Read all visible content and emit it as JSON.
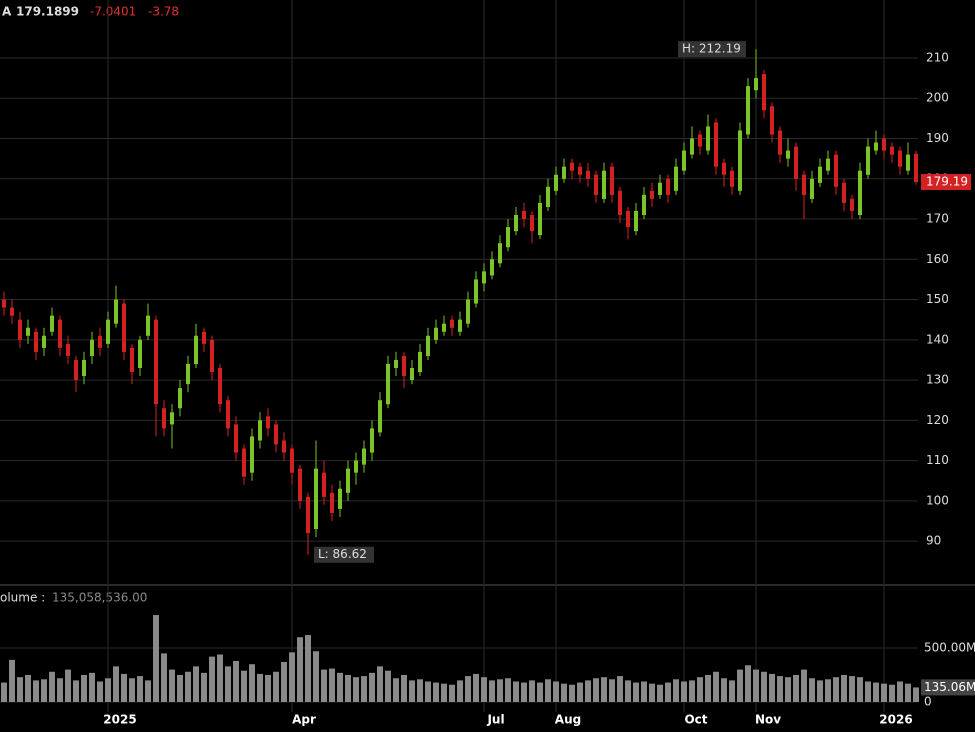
{
  "chart_data": {
    "type": "candlestick",
    "header": {
      "symbol": "A",
      "last": "179.1899",
      "change": "-7.0401",
      "change_pct": "-3.78"
    },
    "volume_title": "olume :",
    "volume_header_value": "135,058,536.00",
    "high_marker": "H: 212.19",
    "low_marker": "L: 86.62",
    "last_price_label": "179.19",
    "last_volume_label": "135.06M",
    "up_color": "#7cc528",
    "down_color": "#d42222",
    "volume_color": "#8a8a8a",
    "ylim": [
      79.6,
      224.4
    ],
    "yticks": [
      90,
      100,
      110,
      120,
      130,
      140,
      150,
      160,
      170,
      180,
      190,
      200,
      210
    ],
    "volume_ylim": [
      0,
      1037000000
    ],
    "volume_yticks": [
      0,
      {
        "value": 500000000,
        "label": "500.00M"
      }
    ],
    "categories": [
      null,
      null,
      null,
      null,
      null,
      null,
      null,
      null,
      null,
      null,
      null,
      null,
      null,
      "2025",
      null,
      null,
      null,
      null,
      null,
      null,
      null,
      null,
      null,
      null,
      null,
      null,
      null,
      null,
      null,
      null,
      null,
      null,
      null,
      null,
      null,
      null,
      "Apr",
      null,
      null,
      null,
      null,
      null,
      null,
      null,
      null,
      null,
      null,
      null,
      null,
      null,
      null,
      null,
      null,
      null,
      null,
      null,
      null,
      null,
      null,
      null,
      "Jul",
      null,
      null,
      null,
      null,
      null,
      null,
      null,
      null,
      "Aug",
      null,
      null,
      null,
      null,
      null,
      null,
      null,
      null,
      null,
      null,
      null,
      null,
      null,
      null,
      null,
      "Oct",
      null,
      null,
      null,
      null,
      null,
      null,
      null,
      null,
      "Nov",
      null,
      null,
      null,
      null,
      null,
      null,
      null,
      null,
      null,
      null,
      null,
      null,
      null,
      null,
      null,
      "2026",
      null,
      null,
      null,
      null
    ],
    "open": [
      150,
      148,
      145,
      141,
      142,
      138,
      142,
      145,
      139,
      135,
      131,
      136,
      141,
      139,
      144,
      149,
      138,
      133,
      141,
      145,
      123,
      119,
      123,
      129,
      134,
      142,
      140,
      133,
      125,
      119,
      113,
      107,
      115,
      121,
      119,
      115,
      113,
      108,
      101,
      93,
      107,
      102,
      98,
      102,
      107,
      109,
      112,
      117,
      124,
      133,
      136,
      130,
      132,
      136,
      140,
      142,
      145,
      142,
      144,
      149,
      154,
      156,
      159,
      163,
      167,
      172,
      171,
      166,
      173,
      177,
      180,
      184,
      183,
      182,
      181,
      175,
      183,
      177,
      172,
      167,
      171,
      177,
      176,
      180,
      177,
      182,
      186,
      191,
      187,
      194,
      184,
      182,
      177,
      191,
      202,
      206,
      198,
      192,
      185,
      188,
      181,
      175,
      179,
      182,
      186,
      179,
      175,
      171,
      181,
      187,
      190,
      188,
      187,
      182,
      186.2
    ],
    "high": [
      152,
      150,
      147,
      145,
      143,
      143,
      148,
      146,
      141,
      136,
      137,
      142,
      143,
      147,
      153.5,
      150,
      139,
      141,
      149,
      146,
      125,
      124,
      130,
      136,
      144,
      143,
      141,
      134,
      126,
      121,
      114,
      118,
      122,
      123,
      120,
      117,
      114,
      109,
      102,
      115,
      110,
      104,
      105,
      110,
      112,
      115,
      120,
      127,
      136,
      137,
      137,
      135,
      139,
      143,
      145,
      146,
      146,
      147,
      152,
      157,
      159,
      162,
      166,
      170,
      173,
      174,
      172,
      176,
      180,
      183,
      185,
      185,
      184,
      184,
      182,
      184,
      184,
      178,
      173,
      174,
      178,
      179,
      181,
      181,
      185,
      189,
      193,
      192,
      196,
      195,
      185,
      183,
      194,
      205,
      212.19,
      207,
      199,
      193,
      190,
      189,
      182,
      182,
      185,
      187,
      187,
      180,
      176,
      184,
      190,
      192,
      191,
      189,
      188,
      189,
      187
    ],
    "low": [
      146,
      144,
      138,
      139,
      135,
      136,
      141,
      136,
      134,
      127,
      129,
      134,
      136,
      138,
      143,
      135,
      129,
      131,
      140,
      116,
      116,
      113,
      121,
      127,
      133,
      137,
      130,
      122,
      116,
      110,
      104,
      105,
      113,
      116,
      112,
      110,
      104,
      98,
      86.62,
      91,
      99,
      95,
      96,
      100,
      104,
      107,
      110,
      116,
      123,
      131,
      128,
      129,
      131,
      135,
      139,
      141,
      141,
      141,
      143,
      148,
      152,
      155,
      158,
      162,
      166,
      168,
      164,
      165,
      172,
      176,
      179,
      180,
      179,
      178,
      174,
      174,
      174,
      169,
      165,
      166,
      170,
      173,
      175,
      174,
      176,
      181,
      185,
      186,
      186,
      181,
      178,
      176,
      176,
      190,
      200,
      195,
      189,
      184,
      183,
      177,
      170,
      174,
      178,
      181,
      176,
      172,
      170,
      170,
      180,
      186,
      185,
      184,
      181,
      181,
      178.5
    ],
    "close": [
      148,
      146,
      140,
      143,
      137,
      141,
      146,
      138,
      136,
      130,
      135,
      140,
      138,
      145,
      150,
      137,
      132,
      140,
      146,
      124,
      118,
      122,
      128,
      134,
      141,
      139,
      132,
      124,
      118,
      112,
      106,
      116,
      120,
      118,
      114,
      112,
      107,
      100,
      92,
      108,
      101,
      97,
      103,
      108,
      110,
      113,
      118,
      125,
      134,
      135,
      131,
      133,
      137,
      141,
      143,
      144,
      143,
      145,
      150,
      155,
      157,
      160,
      164,
      168,
      171,
      170,
      167,
      174,
      178,
      181,
      183,
      182,
      181,
      180,
      176,
      182,
      176,
      171,
      168,
      172,
      176,
      175,
      179,
      176,
      183,
      187,
      190,
      188,
      193,
      183,
      181,
      178,
      192,
      203,
      205,
      197,
      191,
      186,
      187,
      180,
      176,
      180,
      183,
      185,
      178,
      174,
      172,
      182,
      188,
      189,
      187,
      186,
      183,
      186,
      179.1899
    ],
    "volume": [
      180000000,
      390000000,
      230000000,
      250000000,
      200000000,
      210000000,
      280000000,
      220000000,
      300000000,
      200000000,
      250000000,
      270000000,
      190000000,
      220000000,
      330000000,
      260000000,
      220000000,
      240000000,
      200000000,
      805000000,
      450000000,
      300000000,
      250000000,
      280000000,
      330000000,
      270000000,
      420000000,
      440000000,
      330000000,
      380000000,
      290000000,
      350000000,
      260000000,
      250000000,
      280000000,
      370000000,
      460000000,
      600000000,
      620000000,
      470000000,
      300000000,
      310000000,
      270000000,
      250000000,
      230000000,
      240000000,
      270000000,
      330000000,
      290000000,
      220000000,
      250000000,
      200000000,
      210000000,
      190000000,
      180000000,
      170000000,
      160000000,
      200000000,
      240000000,
      260000000,
      230000000,
      200000000,
      210000000,
      220000000,
      190000000,
      180000000,
      200000000,
      180000000,
      210000000,
      190000000,
      170000000,
      160000000,
      180000000,
      200000000,
      220000000,
      230000000,
      210000000,
      240000000,
      200000000,
      180000000,
      190000000,
      170000000,
      160000000,
      180000000,
      210000000,
      190000000,
      200000000,
      230000000,
      250000000,
      280000000,
      220000000,
      200000000,
      300000000,
      340000000,
      300000000,
      280000000,
      260000000,
      240000000,
      230000000,
      250000000,
      300000000,
      220000000,
      200000000,
      210000000,
      230000000,
      250000000,
      240000000,
      230000000,
      190000000,
      180000000,
      170000000,
      160000000,
      190000000,
      170000000,
      135058536
    ]
  }
}
